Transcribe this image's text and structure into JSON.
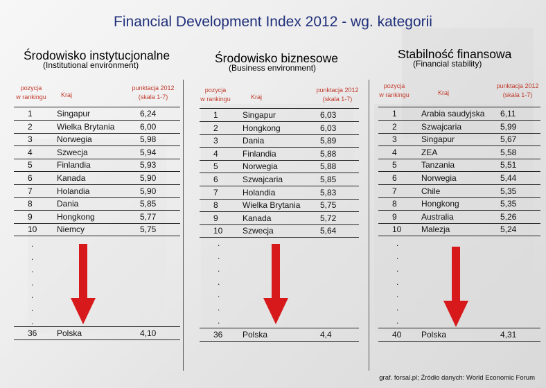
{
  "title": "Financial Development Index 2012 - wg. kategorii",
  "footer": "graf. forsal.pl; Źródło danych: World Economic Forum",
  "headers": {
    "position": [
      "pozycja",
      "w rankingu"
    ],
    "country": "Kraj",
    "score": [
      "punktacja 2012",
      "(skala 1-7)"
    ]
  },
  "columns": [
    {
      "title": "Środowisko instytucjonalne",
      "subtitle": "(Institutional environment)",
      "rows": [
        {
          "rank": "1",
          "country": "Singapur",
          "score": "6,24"
        },
        {
          "rank": "2",
          "country": "Wielka Brytania",
          "score": "6,00"
        },
        {
          "rank": "3",
          "country": "Norwegia",
          "score": "5,98"
        },
        {
          "rank": "4",
          "country": "Szwecja",
          "score": "5,94"
        },
        {
          "rank": "5",
          "country": "Finlandia",
          "score": "5,93"
        },
        {
          "rank": "6",
          "country": "Kanada",
          "score": "5,90"
        },
        {
          "rank": "7",
          "country": "Holandia",
          "score": "5,90"
        },
        {
          "rank": "8",
          "country": "Dania",
          "score": "5,85"
        },
        {
          "rank": "9",
          "country": "Hongkong",
          "score": "5,77"
        },
        {
          "rank": "10",
          "country": "Niemcy",
          "score": "5,75"
        }
      ],
      "poland": {
        "rank": "36",
        "country": "Polska",
        "score": "4,10"
      }
    },
    {
      "title": "Środowisko biznesowe",
      "subtitle": "(Business environment)",
      "rows": [
        {
          "rank": "1",
          "country": "Singapur",
          "score": "6,03"
        },
        {
          "rank": "2",
          "country": "Hongkong",
          "score": "6,03"
        },
        {
          "rank": "3",
          "country": "Dania",
          "score": "5,89"
        },
        {
          "rank": "4",
          "country": "Finlandia",
          "score": "5,88"
        },
        {
          "rank": "5",
          "country": "Norwegia",
          "score": "5,88"
        },
        {
          "rank": "6",
          "country": "Szwajcaria",
          "score": "5,85"
        },
        {
          "rank": "7",
          "country": "Holandia",
          "score": "5,83"
        },
        {
          "rank": "8",
          "country": "Wielka Brytania",
          "score": "5,75"
        },
        {
          "rank": "9",
          "country": "Kanada",
          "score": "5,72"
        },
        {
          "rank": "10",
          "country": "Szwecja",
          "score": "5,64"
        }
      ],
      "poland": {
        "rank": "36",
        "country": "Polska",
        "score": "4,4"
      }
    },
    {
      "title": "Stabilność finansowa",
      "subtitle": "(Financial stability)",
      "rows": [
        {
          "rank": "1",
          "country": "Arabia saudyjska",
          "score": "6,11"
        },
        {
          "rank": "2",
          "country": "Szwajcaria",
          "score": "5,99"
        },
        {
          "rank": "3",
          "country": "Singapur",
          "score": "5,67"
        },
        {
          "rank": "4",
          "country": "ZEA",
          "score": "5,58"
        },
        {
          "rank": "5",
          "country": "Tanzania",
          "score": "5,51"
        },
        {
          "rank": "6",
          "country": "Norwegia",
          "score": "5,44"
        },
        {
          "rank": "7",
          "country": "Chile",
          "score": "5,35"
        },
        {
          "rank": "8",
          "country": "Hongkong",
          "score": "5,35"
        },
        {
          "rank": "9",
          "country": "Australia",
          "score": "5,26"
        },
        {
          "rank": "10",
          "country": "Malezja",
          "score": "5,24"
        }
      ],
      "poland": {
        "rank": "40",
        "country": "Polska",
        "score": "4,31"
      }
    }
  ],
  "colors": {
    "title": "#1f2f7a",
    "header": "#c0392b",
    "arrow": "#d7191c"
  }
}
